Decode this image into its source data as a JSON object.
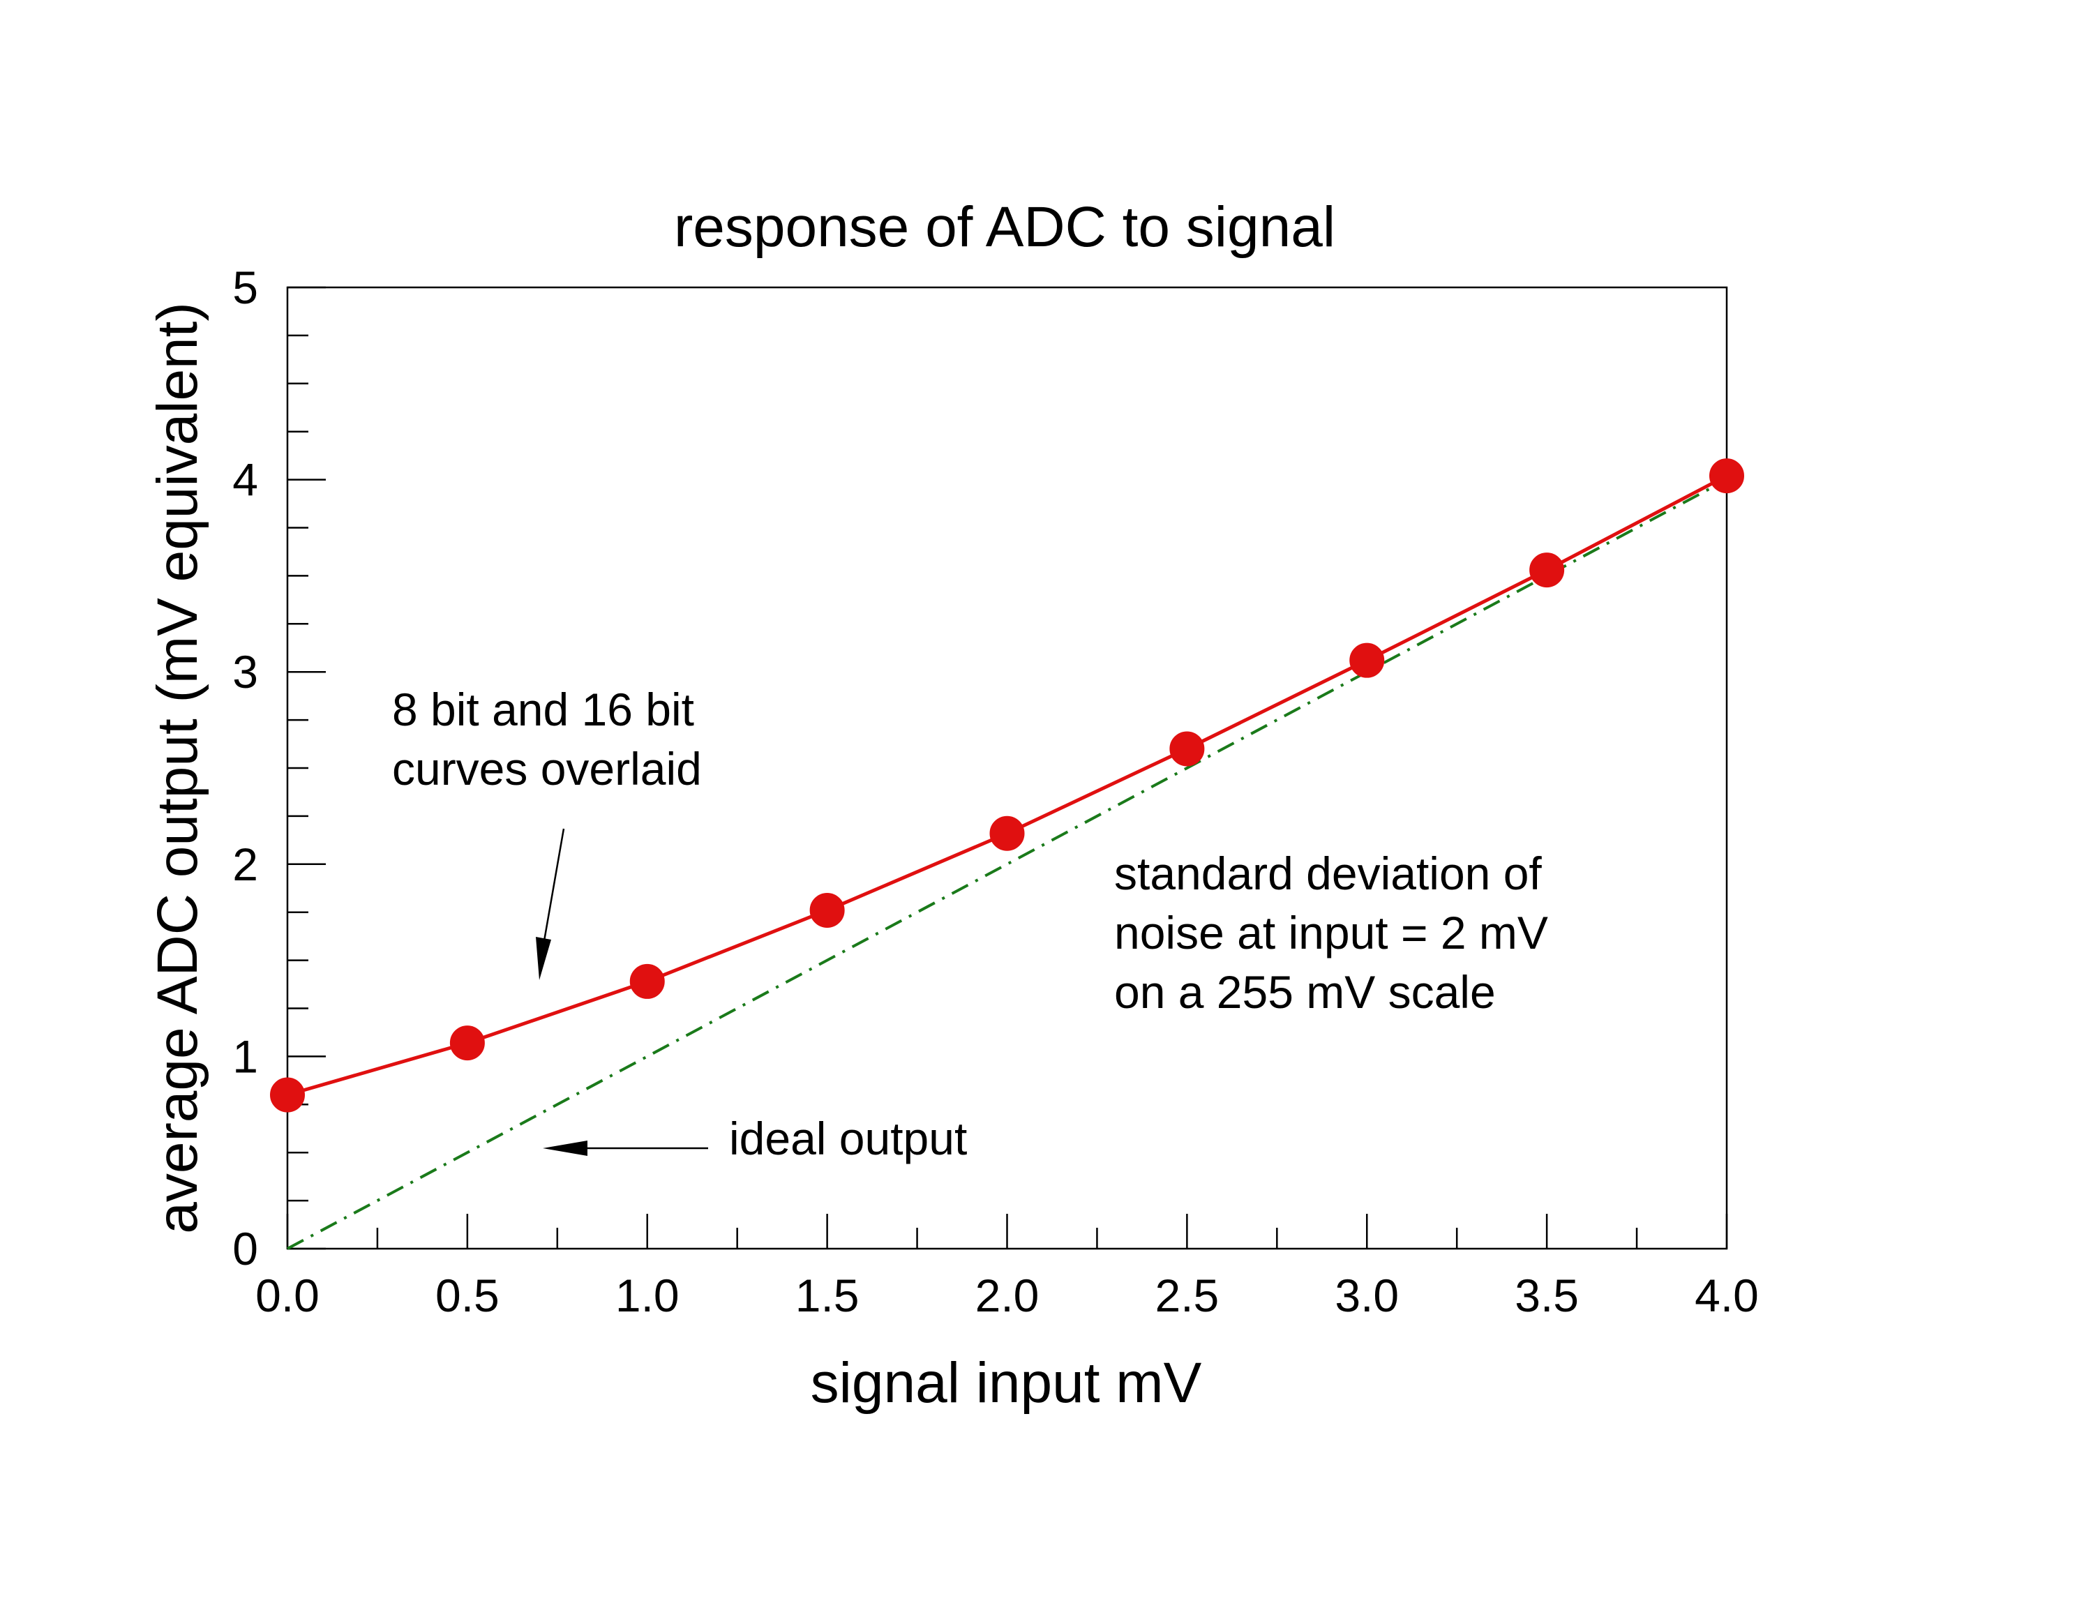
{
  "chart_data": {
    "type": "line",
    "title": "response of ADC to signal",
    "xlabel": "signal input mV",
    "ylabel": "average ADC output (mV equivalent)",
    "xlim": [
      0,
      4
    ],
    "ylim": [
      0,
      5
    ],
    "x_ticks": [
      "0.0",
      "0.5",
      "1.0",
      "1.5",
      "2.0",
      "2.5",
      "3.0",
      "3.5",
      "4.0"
    ],
    "y_ticks": [
      "0",
      "1",
      "2",
      "3",
      "4",
      "5"
    ],
    "grid": false,
    "series": [
      {
        "style": "solid line with circle markers",
        "color": "#e01010",
        "x": [
          0.0,
          0.5,
          1.0,
          1.5,
          2.0,
          2.5,
          3.0,
          3.5,
          4.0
        ],
        "y": [
          0.8,
          1.07,
          1.39,
          1.76,
          2.16,
          2.6,
          3.06,
          3.53,
          4.02
        ]
      },
      {
        "style": "dash-dot line",
        "color": "#1a7a1a",
        "x": [
          0.0,
          4.0
        ],
        "y": [
          0.0,
          4.0
        ]
      }
    ],
    "annotations": [
      {
        "text": [
          "8 bit and 16 bit",
          "curves overlaid"
        ]
      },
      {
        "text": [
          "standard deviation of",
          "noise at input = 2 mV",
          "on a 255 mV scale"
        ]
      },
      {
        "text": [
          "ideal output"
        ]
      }
    ]
  }
}
